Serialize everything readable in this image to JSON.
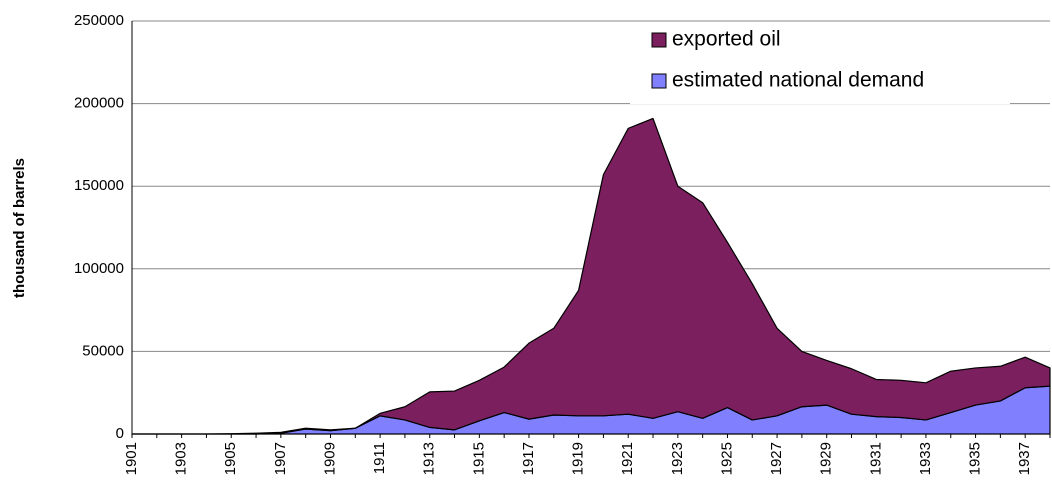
{
  "chart_data": {
    "type": "stacked_area",
    "y_label": "thousand of barrels",
    "categories": [
      "1901",
      null,
      "1903",
      null,
      "1905",
      null,
      "1907",
      null,
      "1909",
      null,
      "1911",
      null,
      "1913",
      null,
      "1915",
      null,
      "1917",
      null,
      "1919",
      null,
      "1921",
      null,
      "1923",
      null,
      "1925",
      null,
      "1927",
      null,
      "1929",
      null,
      "1931",
      null,
      "1933",
      null,
      "1935",
      null,
      "1937",
      null
    ],
    "series": [
      {
        "name": "exported oil",
        "color": "#7b1f5e",
        "values": [
          0,
          0,
          0,
          0,
          200,
          500,
          500,
          500,
          500,
          0,
          1500,
          8000,
          21500,
          23500,
          24500,
          27500,
          46000,
          52500,
          76000,
          146000,
          173000,
          181500,
          136500,
          130500,
          100000,
          82500,
          53000,
          33500,
          27000,
          27500,
          22500,
          22500,
          22500,
          25000,
          22500,
          21000,
          18500,
          11000
        ]
      },
      {
        "name": "estimated national demand",
        "color": "#8080ff",
        "values": [
          0,
          0,
          0,
          0,
          0,
          0,
          500,
          3000,
          2000,
          3500,
          11000,
          8500,
          4000,
          2500,
          8000,
          13000,
          9000,
          11500,
          11000,
          11000,
          12000,
          9500,
          13500,
          9500,
          16000,
          8500,
          11000,
          16500,
          17500,
          12000,
          10500,
          10000,
          8500,
          13000,
          17500,
          20000,
          28000,
          29000
        ]
      }
    ],
    "ylim": [
      0,
      250000
    ],
    "yticks": [
      0,
      50000,
      100000,
      150000,
      200000,
      250000
    ],
    "grid": true,
    "legend": "top-right"
  }
}
